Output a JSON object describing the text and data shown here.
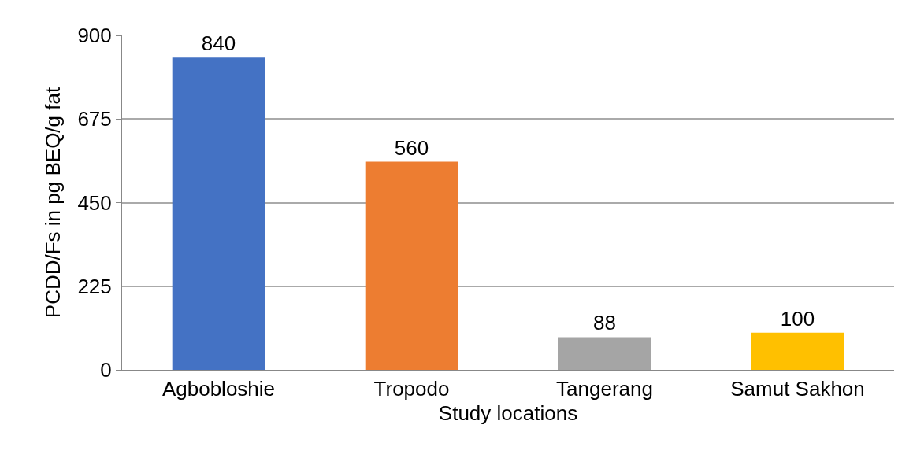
{
  "chart_data": {
    "type": "bar",
    "xlabel": "Study locations",
    "ylabel": "PCDD/Fs in pg BEQ/g fat",
    "categories": [
      "Agbobloshie",
      "Tropodo",
      "Tangerang",
      "Samut Sakhon"
    ],
    "values": [
      840,
      560,
      88,
      100
    ],
    "colors": [
      "#4472c4",
      "#ed7d31",
      "#a5a5a5",
      "#ffc000"
    ],
    "ylim": [
      0,
      900
    ],
    "yticks": [
      0,
      225,
      450,
      675,
      900
    ],
    "grid": "y",
    "data_labels": true
  }
}
